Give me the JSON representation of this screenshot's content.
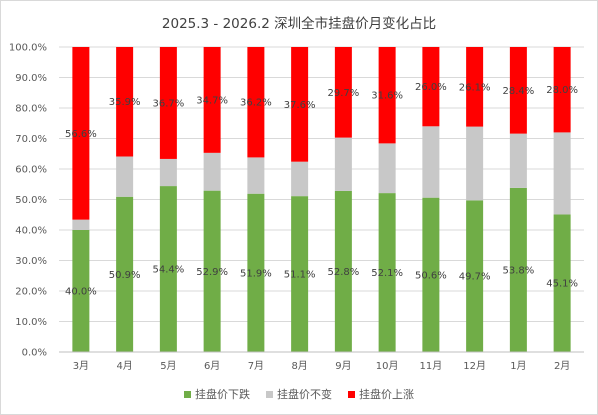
{
  "title": "2025.3 - 2026.2 深圳全市挂盘价月变化占比",
  "chart_data": {
    "type": "bar",
    "stacked": true,
    "title": "2025.3 - 2026.2 深圳全市挂盘价月变化占比",
    "categories": [
      "3月",
      "4月",
      "5月",
      "6月",
      "7月",
      "8月",
      "9月",
      "10月",
      "11月",
      "12月",
      "1月",
      "2月"
    ],
    "ylim": [
      0,
      100
    ],
    "yticks": [
      "0.0%",
      "10.0%",
      "20.0%",
      "30.0%",
      "40.0%",
      "50.0%",
      "60.0%",
      "70.0%",
      "80.0%",
      "90.0%",
      "100.0%"
    ],
    "grid": true,
    "legend": "bottom",
    "series": [
      {
        "name": "挂盘价下跌",
        "color": "#70ad47",
        "values": [
          40.0,
          50.9,
          54.4,
          52.9,
          51.9,
          51.1,
          52.8,
          52.1,
          50.6,
          49.7,
          53.8,
          45.1
        ],
        "labels": [
          "40.0%",
          "50.9%",
          "54.4%",
          "52.9%",
          "51.9%",
          "51.1%",
          "52.8%",
          "52.1%",
          "50.6%",
          "49.7%",
          "53.8%",
          "45.1%"
        ]
      },
      {
        "name": "挂盘价不变",
        "color": "#c8c8c8",
        "values": [
          3.4,
          13.2,
          8.9,
          12.4,
          11.9,
          11.3,
          17.5,
          16.3,
          23.4,
          24.2,
          17.8,
          26.9
        ],
        "labels": []
      },
      {
        "name": "挂盘价上涨",
        "color": "#ff0000",
        "values": [
          56.6,
          35.9,
          36.7,
          34.7,
          36.2,
          37.6,
          29.7,
          31.6,
          26.0,
          26.1,
          28.4,
          28.0
        ],
        "labels": [
          "56.6%",
          "35.9%",
          "36.7%",
          "34.7%",
          "36.2%",
          "37.6%",
          "29.7%",
          "31.6%",
          "26.0%",
          "26.1%",
          "28.4%",
          "28.0%"
        ]
      }
    ]
  }
}
